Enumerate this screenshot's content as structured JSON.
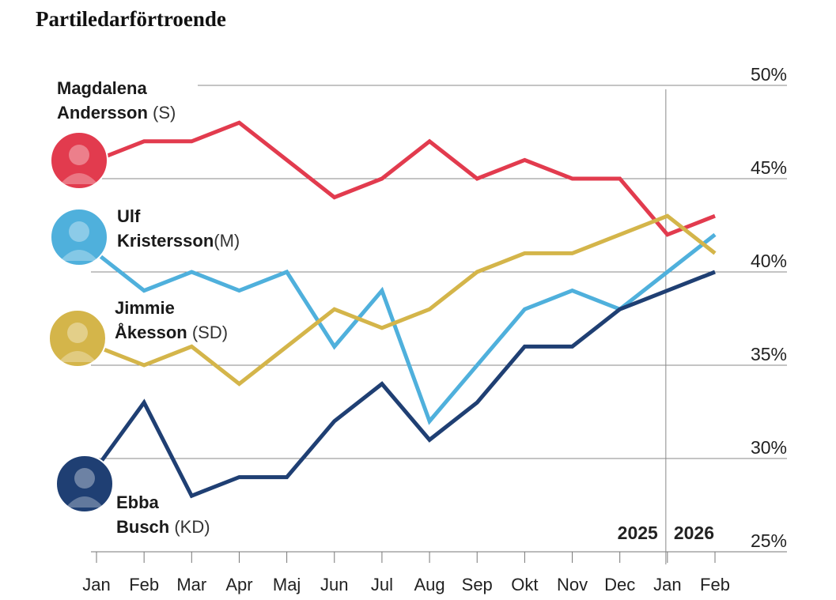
{
  "chart_data": {
    "type": "line",
    "title": "Partiledarförtroende",
    "categories": [
      "Jan",
      "Feb",
      "Mar",
      "Apr",
      "Maj",
      "Jun",
      "Jul",
      "Aug",
      "Sep",
      "Okt",
      "Nov",
      "Dec",
      "Jan",
      "Feb"
    ],
    "years": [
      "2025",
      "2026"
    ],
    "ylim": [
      25,
      50
    ],
    "yticks": [
      {
        "value": 25,
        "label": "25%"
      },
      {
        "value": 30,
        "label": "30%"
      },
      {
        "value": 35,
        "label": "35%"
      },
      {
        "value": 40,
        "label": "40%"
      },
      {
        "value": 45,
        "label": "45%"
      },
      {
        "value": 50,
        "label": "50%"
      }
    ],
    "grid": true,
    "series": [
      {
        "name": "Magdalena Andersson",
        "party": "(S)",
        "color": "#e23b4e",
        "values": [
          46,
          47,
          47,
          48,
          46,
          44,
          45,
          47,
          45,
          46,
          45,
          45,
          42,
          43
        ]
      },
      {
        "name": "Ulf Kristersson",
        "party": "(M)",
        "color": "#4fb0dc",
        "values": [
          41,
          39,
          40,
          39,
          40,
          36,
          39,
          32,
          35,
          38,
          39,
          38,
          40,
          42
        ]
      },
      {
        "name": "Jimmie Åkesson",
        "party": "(SD)",
        "color": "#d4b54a",
        "values": [
          36,
          35,
          36,
          34,
          36,
          38,
          37,
          38,
          40,
          41,
          41,
          42,
          43,
          41
        ]
      },
      {
        "name": "Ebba Busch",
        "party": "(KD)",
        "color": "#1f3f73",
        "values": [
          29.5,
          33,
          28,
          29,
          29,
          32,
          34,
          31,
          33,
          36,
          36,
          38,
          39,
          40
        ]
      }
    ]
  }
}
